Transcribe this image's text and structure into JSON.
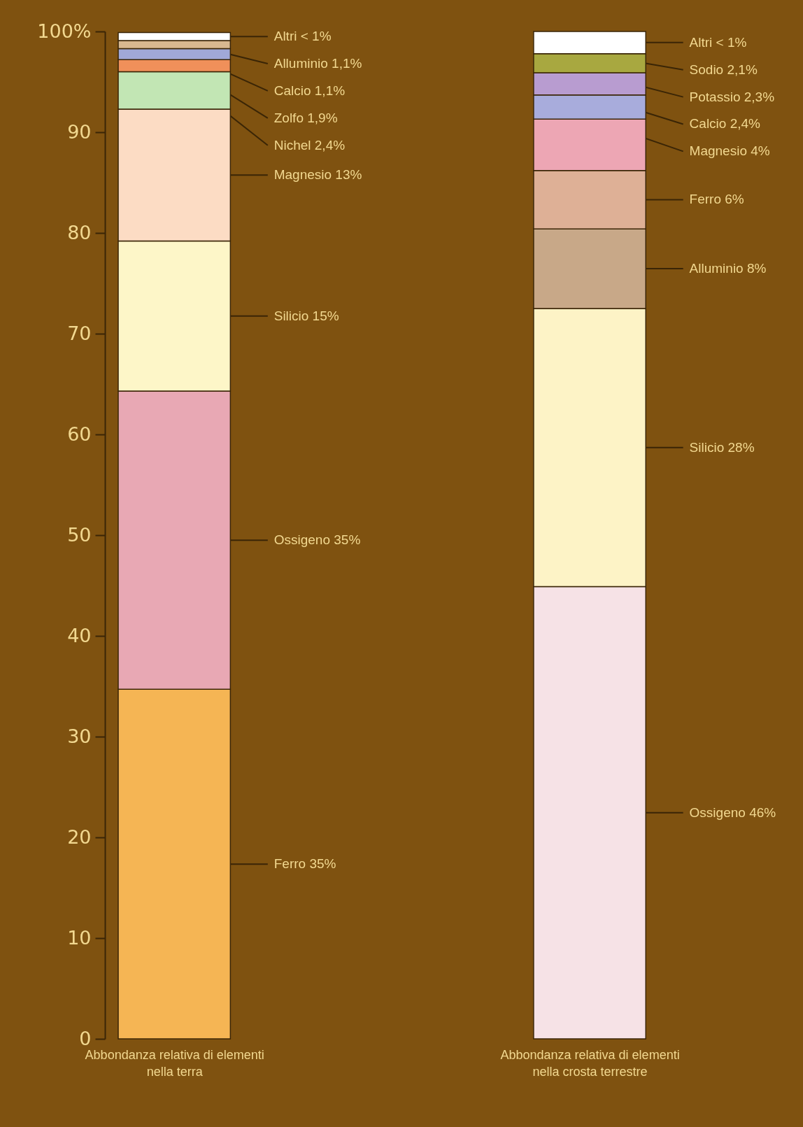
{
  "chart_data": {
    "type": "bar",
    "stacked": true,
    "categories": [
      "Abbondanza relativa di elementi nella terra",
      "Abbondanza relativa di elementi nella crosta terrestre"
    ],
    "series": [
      {
        "color": "#f5b554",
        "values": [
          34.7,
          null
        ]
      },
      {
        "color": "#e8a8b4",
        "values": [
          29.6,
          null
        ]
      },
      {
        "color": "#fdf6c8",
        "values": [
          14.9,
          null
        ]
      },
      {
        "color": "#fcdcc4",
        "values": [
          13.1,
          null
        ]
      },
      {
        "color": "#c2e6b4",
        "values": [
          3.7,
          null
        ]
      },
      {
        "color": "#f0905a",
        "values": [
          1.2,
          null
        ]
      },
      {
        "color": "#a0a8d8",
        "values": [
          1.1,
          null
        ]
      },
      {
        "color": "#d8b890",
        "values": [
          0.8,
          null
        ]
      },
      {
        "color": "#ffffff",
        "values": [
          0.8,
          null
        ]
      },
      {
        "color": "#f6e2e6",
        "values": [
          null,
          44.9
        ]
      },
      {
        "color": "#fdf3c6",
        "values": [
          null,
          27.6
        ]
      },
      {
        "color": "#c8a888",
        "values": [
          null,
          7.9
        ]
      },
      {
        "color": "#deb096",
        "values": [
          null,
          5.8
        ]
      },
      {
        "color": "#eda6b4",
        "values": [
          null,
          5.1
        ]
      },
      {
        "color": "#a8acdc",
        "values": [
          null,
          2.4
        ]
      },
      {
        "color": "#b89cd0",
        "values": [
          null,
          2.2
        ]
      },
      {
        "color": "#a8a840",
        "values": [
          null,
          1.9
        ]
      },
      {
        "color": "#ffffff",
        "values": [
          null,
          2.2
        ]
      }
    ],
    "ylim": [
      0,
      100
    ],
    "yticks": [
      0,
      10,
      20,
      30,
      40,
      50,
      60,
      70,
      80,
      90,
      {
        "value": 100,
        "label": "100%"
      }
    ],
    "grid": false,
    "legend": false,
    "annotations": [
      "Ferro 35%",
      "Ossigeno 35%",
      "Silicio 15%",
      "Magnesio 13%",
      {
        "text": "Nichel 2,4%",
        "x": "Abbondanza relativa di elementi nella terra",
        "y": 96.0
      },
      {
        "text": "Zolfo 1,9%",
        "x": "Abbondanza relativa di elementi nella terra",
        "y": 97.2
      },
      {
        "text": "Calcio 1,1%",
        "x": "Abbondanza relativa di elementi nella terra",
        "y": 98.3
      },
      {
        "text": "Alluminio 1,1%",
        "x": "Abbondanza relativa di elementi nella terra",
        "y": 99.1
      },
      "Altri < 1%",
      "Ossigeno 46%",
      "Silicio 28%",
      "Alluminio 8%",
      "Ferro 6%",
      {
        "text": "Magnesio 4%",
        "x": "Abbondanza relativa di elementi nella crosta terrestre",
        "y": 91.3
      },
      {
        "text": "Calcio 2,4%",
        "x": "Abbondanza relativa di elementi nella crosta terrestre",
        "y": 93.7
      },
      {
        "text": "Potassio 2,3%",
        "x": "Abbondanza relativa di elementi nella crosta terrestre",
        "y": 95.9
      },
      {
        "text": "Sodio 2,1%",
        "x": "Abbondanza relativa di elementi nella crosta terrestre",
        "y": 97.8
      },
      "Altri < 1%"
    ]
  }
}
